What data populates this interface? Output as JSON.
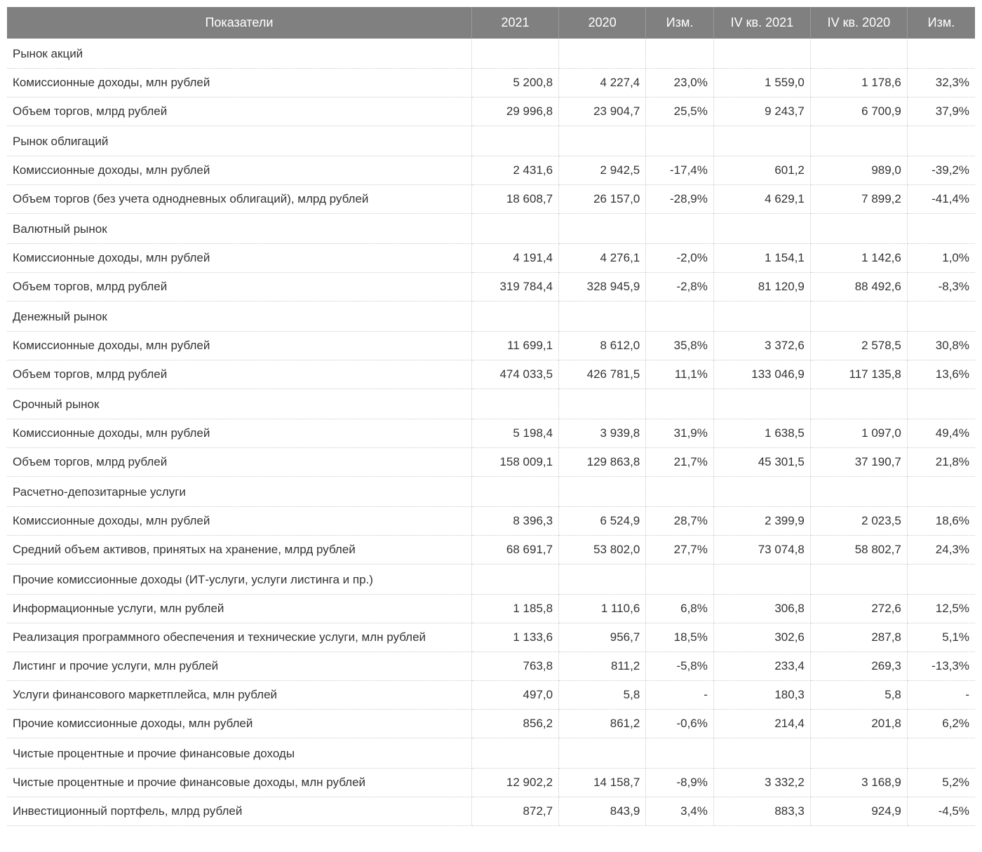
{
  "table": {
    "columns": [
      "Показатели",
      "2021",
      "2020",
      "Изм.",
      "IV кв. 2021",
      "IV кв. 2020",
      "Изм."
    ],
    "column_widths_pct": [
      48,
      9,
      9,
      7,
      10,
      10,
      7
    ],
    "header_bg": "#808080",
    "header_text_color": "#ffffff",
    "border_color": "#cccccc",
    "body_text_color": "#333333",
    "font_size_body": 17,
    "font_size_header": 18,
    "sections": [
      {
        "title": "Рынок акций",
        "rows": [
          {
            "label": "Комиссионные доходы, млн рублей",
            "v": [
              "5 200,8",
              "4 227,4",
              "23,0%",
              "1 559,0",
              "1 178,6",
              "32,3%"
            ]
          },
          {
            "label": "Объем торгов, млрд рублей",
            "v": [
              "29 996,8",
              "23 904,7",
              "25,5%",
              "9 243,7",
              "6 700,9",
              "37,9%"
            ]
          }
        ]
      },
      {
        "title": "Рынок облигаций",
        "rows": [
          {
            "label": "Комиссионные доходы, млн рублей",
            "v": [
              "2 431,6",
              "2 942,5",
              "-17,4%",
              "601,2",
              "989,0",
              "-39,2%"
            ]
          },
          {
            "label": "Объем торгов (без учета однодневных облигаций), млрд рублей",
            "v": [
              "18 608,7",
              "26 157,0",
              "-28,9%",
              "4 629,1",
              "7 899,2",
              "-41,4%"
            ]
          }
        ]
      },
      {
        "title": "Валютный рынок",
        "rows": [
          {
            "label": "Комиссионные доходы, млн рублей",
            "v": [
              "4 191,4",
              "4 276,1",
              "-2,0%",
              "1 154,1",
              "1 142,6",
              "1,0%"
            ]
          },
          {
            "label": "Объем торгов, млрд рублей",
            "v": [
              "319 784,4",
              "328 945,9",
              "-2,8%",
              "81 120,9",
              "88 492,6",
              "-8,3%"
            ]
          }
        ]
      },
      {
        "title": "Денежный рынок",
        "rows": [
          {
            "label": "Комиссионные доходы, млн рублей",
            "v": [
              "11 699,1",
              "8 612,0",
              "35,8%",
              "3 372,6",
              "2 578,5",
              "30,8%"
            ]
          },
          {
            "label": "Объем торгов, млрд рублей",
            "v": [
              "474 033,5",
              "426 781,5",
              "11,1%",
              "133 046,9",
              "117 135,8",
              "13,6%"
            ]
          }
        ]
      },
      {
        "title": "Срочный рынок",
        "rows": [
          {
            "label": "Комиссионные доходы, млн рублей",
            "v": [
              "5 198,4",
              "3 939,8",
              "31,9%",
              "1 638,5",
              "1 097,0",
              "49,4%"
            ]
          },
          {
            "label": "Объем торгов, млрд рублей",
            "v": [
              "158 009,1",
              "129 863,8",
              "21,7%",
              "45 301,5",
              "37 190,7",
              "21,8%"
            ]
          }
        ]
      },
      {
        "title": "Расчетно-депозитарные услуги",
        "rows": [
          {
            "label": "Комиссионные доходы, млн рублей",
            "v": [
              "8 396,3",
              "6 524,9",
              "28,7%",
              "2 399,9",
              "2 023,5",
              "18,6%"
            ]
          },
          {
            "label": "Средний объем активов, принятых на хранение, млрд рублей",
            "v": [
              "68 691,7",
              "53 802,0",
              "27,7%",
              "73 074,8",
              "58 802,7",
              "24,3%"
            ]
          }
        ]
      },
      {
        "title": "Прочие комиссионные доходы (ИТ-услуги, услуги листинга и пр.)",
        "rows": [
          {
            "label": "Информационные услуги, млн рублей",
            "v": [
              "1 185,8",
              "1 110,6",
              "6,8%",
              "306,8",
              "272,6",
              "12,5%"
            ]
          },
          {
            "label": "Реализация программного обеспечения и технические услуги, млн рублей",
            "v": [
              "1 133,6",
              "956,7",
              "18,5%",
              "302,6",
              "287,8",
              "5,1%"
            ]
          },
          {
            "label": "Листинг и прочие услуги, млн рублей",
            "v": [
              "763,8",
              "811,2",
              "-5,8%",
              "233,4",
              "269,3",
              "-13,3%"
            ]
          },
          {
            "label": "Услуги финансового маркетплейса, млн рублей",
            "v": [
              "497,0",
              "5,8",
              "-",
              "180,3",
              "5,8",
              "-"
            ]
          },
          {
            "label": "Прочие комиссионные доходы, млн рублей",
            "v": [
              "856,2",
              "861,2",
              "-0,6%",
              "214,4",
              "201,8",
              "6,2%"
            ]
          }
        ]
      },
      {
        "title": "Чистые процентные и прочие финансовые доходы",
        "rows": [
          {
            "label": "Чистые процентные и прочие финансовые доходы, млн рублей",
            "v": [
              "12 902,2",
              "14 158,7",
              "-8,9%",
              "3 332,2",
              "3 168,9",
              "5,2%"
            ]
          },
          {
            "label": "Инвестиционный портфель, млрд рублей",
            "v": [
              "872,7",
              "843,9",
              "3,4%",
              "883,3",
              "924,9",
              "-4,5%"
            ]
          }
        ]
      }
    ]
  }
}
